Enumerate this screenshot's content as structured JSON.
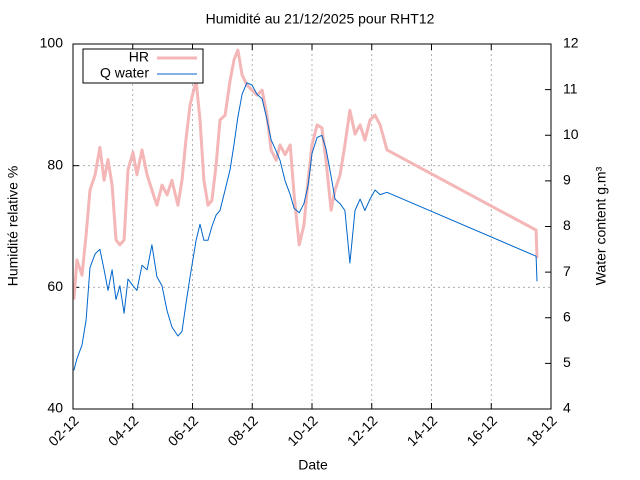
{
  "chart_data": {
    "type": "line",
    "title": "Humidité au 21/12/2025 pour RHT12",
    "x_label": "Date",
    "y_label": "Humidité relative %",
    "y2_label": "Water content g.m³",
    "xlim": [
      2,
      18
    ],
    "xticks": [
      {
        "value": 2,
        "label": "02-12"
      },
      {
        "value": 4,
        "label": "04-12"
      },
      {
        "value": 6,
        "label": "06-12"
      },
      {
        "value": 8,
        "label": "08-12"
      },
      {
        "value": 10,
        "label": "10-12"
      },
      {
        "value": 12,
        "label": "12-12"
      },
      {
        "value": 14,
        "label": "14-12"
      },
      {
        "value": 16,
        "label": "16-12"
      },
      {
        "value": 18,
        "label": "18-12"
      }
    ],
    "ylim": [
      40,
      100
    ],
    "yticks": [
      40,
      60,
      80,
      100
    ],
    "y2lim": [
      4,
      12
    ],
    "y2ticks": [
      4,
      5,
      6,
      7,
      8,
      9,
      10,
      11,
      12
    ],
    "grid": true,
    "legend": "top-left",
    "x": [
      2.03,
      2.13,
      2.3,
      2.44,
      2.57,
      2.74,
      2.9,
      3.04,
      3.17,
      3.31,
      3.44,
      3.57,
      3.71,
      3.84,
      4.01,
      4.14,
      4.31,
      4.48,
      4.64,
      4.81,
      4.98,
      5.15,
      5.31,
      5.51,
      5.65,
      5.78,
      5.92,
      6.12,
      6.25,
      6.38,
      6.52,
      6.65,
      6.79,
      6.92,
      7.09,
      7.26,
      7.39,
      7.52,
      7.66,
      7.82,
      7.99,
      8.16,
      8.33,
      8.49,
      8.63,
      8.8,
      8.93,
      9.1,
      9.27,
      9.4,
      9.57,
      9.73,
      9.87,
      10.0,
      10.17,
      10.33,
      10.47,
      10.64,
      10.77,
      10.94,
      11.1,
      11.27,
      11.44,
      11.61,
      11.77,
      11.94,
      12.11,
      12.28,
      12.51,
      17.5,
      17.53
    ],
    "series": [
      {
        "name": "HR",
        "color": "#f4b6b6",
        "axis": "y",
        "values": [
          58,
          64.5,
          62,
          68.6,
          76,
          78.5,
          83,
          77.6,
          81,
          76.8,
          67.8,
          67,
          67.8,
          79.3,
          82.2,
          78.5,
          82.6,
          78.5,
          76,
          73.5,
          76.8,
          75.2,
          77.6,
          73.5,
          77.6,
          84.2,
          90,
          94,
          87.5,
          77.6,
          73.5,
          74.3,
          80.1,
          87.5,
          88.3,
          94,
          97.4,
          99,
          94.9,
          93.3,
          92.4,
          91.6,
          92.4,
          88.3,
          82.6,
          80.9,
          83.4,
          81.8,
          83.4,
          75.2,
          67,
          70.2,
          77.6,
          83.4,
          86.7,
          86.2,
          80.9,
          72.7,
          76,
          78.5,
          83.4,
          89.1,
          85.2,
          86.7,
          84.2,
          87.5,
          88.3,
          86.7,
          82.6,
          69.4,
          64.8
        ]
      },
      {
        "name": "Q water",
        "color": "#0066cc",
        "axis": "y2",
        "values": [
          4.85,
          5.1,
          5.4,
          5.95,
          7.1,
          7.4,
          7.5,
          7.05,
          6.6,
          7.05,
          6.4,
          6.7,
          6.1,
          6.85,
          6.7,
          6.6,
          7.15,
          7.05,
          7.6,
          6.9,
          6.7,
          6.15,
          5.8,
          5.6,
          5.7,
          6.3,
          6.9,
          7.7,
          8.05,
          7.7,
          7.7,
          8.0,
          8.25,
          8.35,
          8.8,
          9.25,
          9.8,
          10.4,
          10.9,
          11.15,
          11.1,
          10.9,
          10.8,
          10.35,
          9.9,
          9.65,
          9.45,
          9.0,
          8.7,
          8.4,
          8.3,
          8.5,
          8.9,
          9.6,
          9.95,
          10.0,
          9.7,
          9.1,
          8.6,
          8.5,
          8.35,
          7.2,
          8.35,
          8.6,
          8.35,
          8.6,
          8.8,
          8.7,
          8.75,
          7.35,
          6.8
        ]
      }
    ]
  }
}
